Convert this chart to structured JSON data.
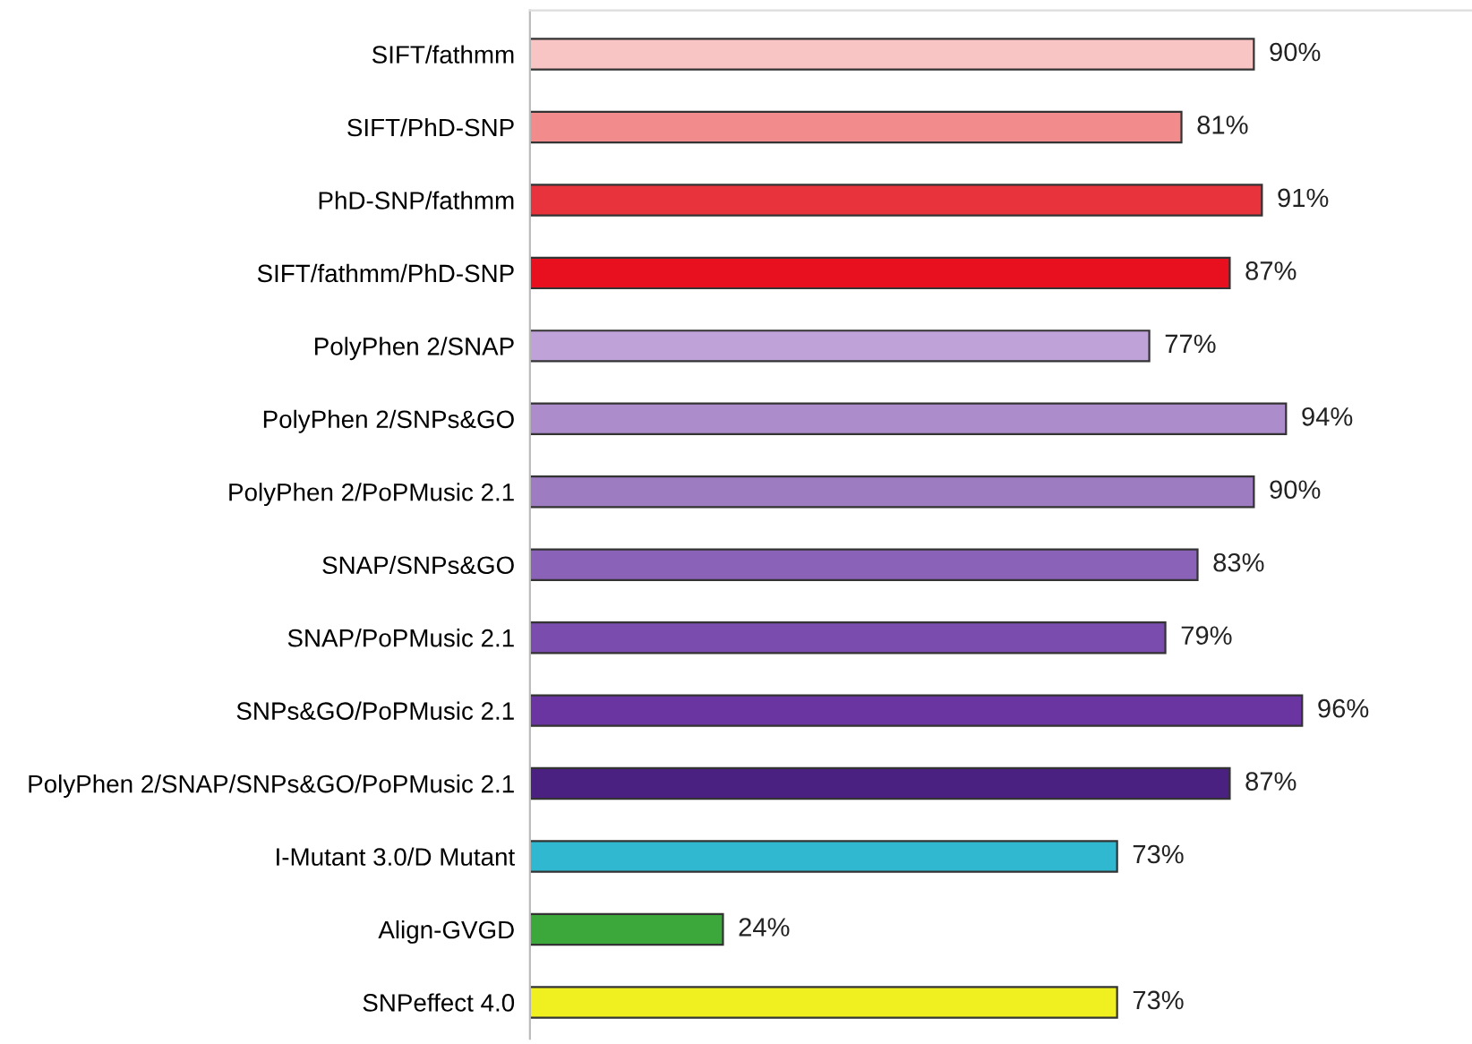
{
  "chart_data": {
    "type": "bar",
    "orientation": "horizontal",
    "categories": [
      "SIFT/fathmm",
      "SIFT/PhD-SNP",
      "PhD-SNP/fathmm",
      "SIFT/fathmm/PhD-SNP",
      "PolyPhen 2/SNAP",
      "PolyPhen 2/SNPs&GO",
      "PolyPhen 2/PoPMusic 2.1",
      "SNAP/SNPs&GO",
      "SNAP/PoPMusic 2.1",
      "SNPs&GO/PoPMusic 2.1",
      "PolyPhen 2/SNAP/SNPs&GO/PoPMusic 2.1",
      "I-Mutant 3.0/D Mutant",
      "Align-GVGD",
      "SNPeffect 4.0"
    ],
    "values": [
      90,
      81,
      91,
      87,
      77,
      94,
      90,
      83,
      79,
      96,
      87,
      73,
      24,
      73
    ],
    "value_labels": [
      "90%",
      "81%",
      "91%",
      "87%",
      "77%",
      "94%",
      "90%",
      "83%",
      "79%",
      "96%",
      "87%",
      "73%",
      "24%",
      "73%"
    ],
    "colors": [
      "#f9c4c4",
      "#f28c8c",
      "#e8323c",
      "#e8101e",
      "#bfa2d8",
      "#ad8ccc",
      "#9d7cc2",
      "#8a62b8",
      "#7a4cae",
      "#6a35a0",
      "#4a2080",
      "#30b8d0",
      "#3ca83c",
      "#f0f020"
    ],
    "grid": false,
    "legend": false
  }
}
